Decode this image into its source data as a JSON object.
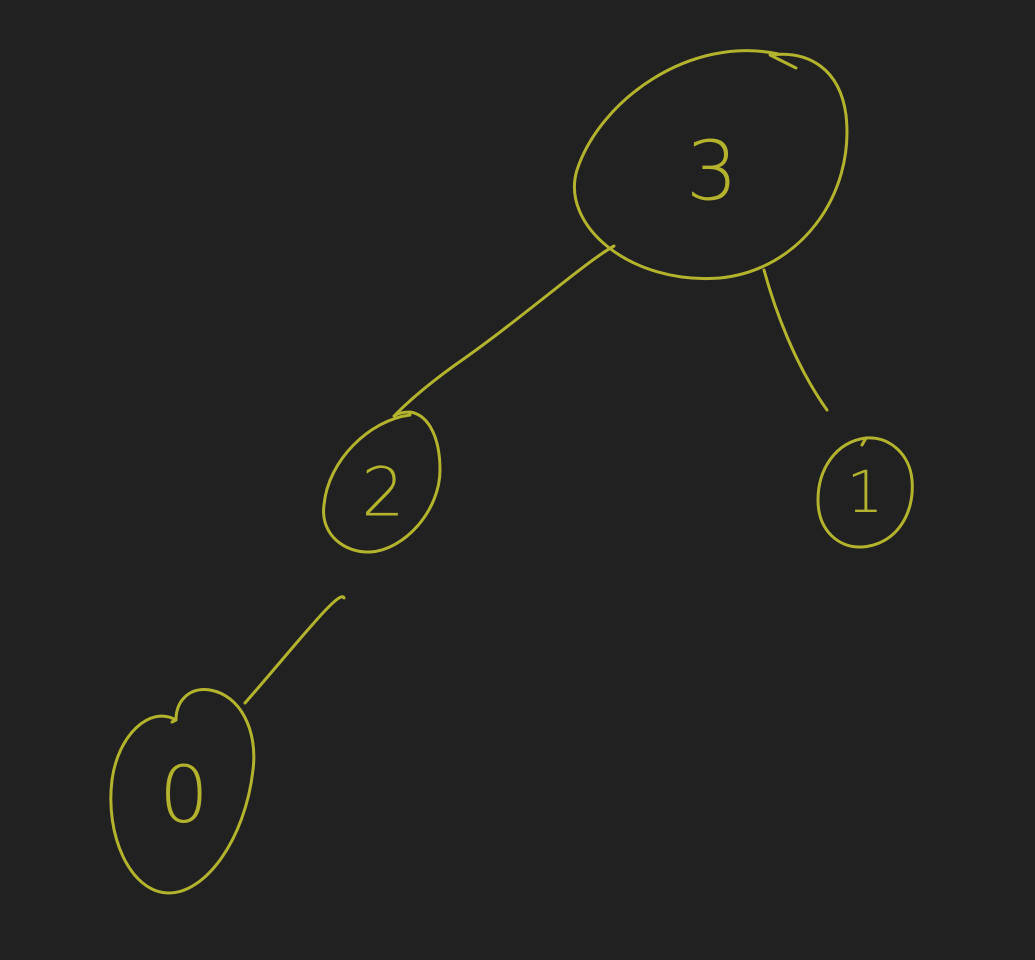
{
  "colors": {
    "background": "#212121",
    "ink": "#b3b32e"
  },
  "tree": {
    "nodes": [
      {
        "id": "n3",
        "label": "3"
      },
      {
        "id": "n2",
        "label": "2"
      },
      {
        "id": "n1",
        "label": "1"
      },
      {
        "id": "n0",
        "label": "0"
      }
    ],
    "edges": [
      {
        "from": "n3",
        "to": "n2"
      },
      {
        "from": "n3",
        "to": "n1"
      },
      {
        "from": "n2",
        "to": "n0"
      }
    ]
  }
}
